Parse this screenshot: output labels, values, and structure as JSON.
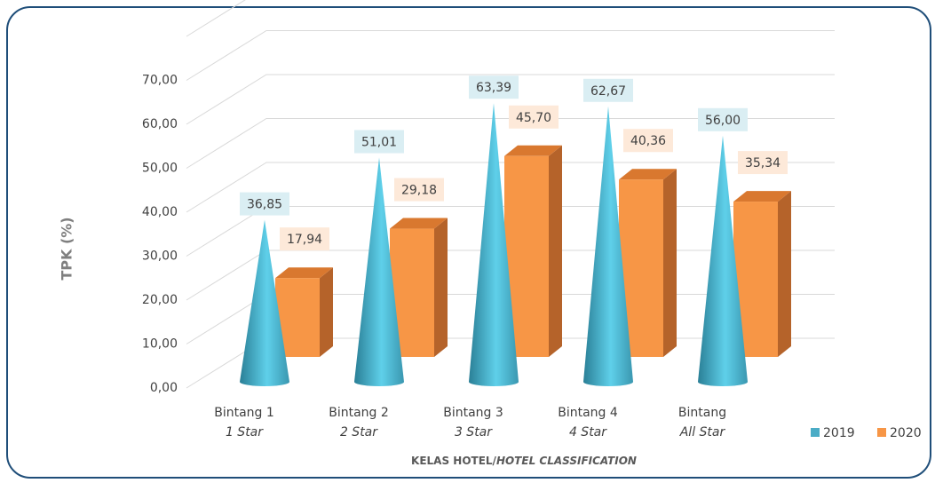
{
  "chart_data": {
    "type": "bar3d",
    "categories": [
      "Bintang 1",
      "Bintang 2",
      "Bintang 3",
      "Bintang 4",
      "Bintang"
    ],
    "category_sublabels": [
      "1 Star",
      "2 Star",
      "3 Star",
      "4 Star",
      "All Star"
    ],
    "series": [
      {
        "name": "2019",
        "color": "#4bacc6",
        "shape": "cone",
        "values": [
          36.85,
          51.01,
          63.39,
          62.67,
          56.0
        ],
        "value_labels": [
          "36,85",
          "51,01",
          "63,39",
          "62,67",
          "56,00"
        ]
      },
      {
        "name": "2020",
        "color": "#f79646",
        "shape": "box",
        "values": [
          17.94,
          29.18,
          45.7,
          40.36,
          35.34
        ],
        "value_labels": [
          "17,94",
          "29,18",
          "45,70",
          "40,36",
          "35,34"
        ]
      }
    ],
    "ylabel": "TPK (%)",
    "xlabel": "KELAS HOTEL/",
    "xlabel_en": "HOTEL CLASSIFICATION",
    "ylim": [
      0,
      80
    ],
    "yticks": [
      {
        "value": 0,
        "label": "0,00"
      },
      {
        "value": 10,
        "label": "10,00"
      },
      {
        "value": 20,
        "label": "20,00"
      },
      {
        "value": 30,
        "label": "30,00"
      },
      {
        "value": 40,
        "label": "40,00"
      },
      {
        "value": 50,
        "label": "50,00"
      },
      {
        "value": 60,
        "label": "60,00"
      },
      {
        "value": 70,
        "label": "70,00"
      }
    ],
    "grid": true,
    "legend": "bottom-right"
  }
}
